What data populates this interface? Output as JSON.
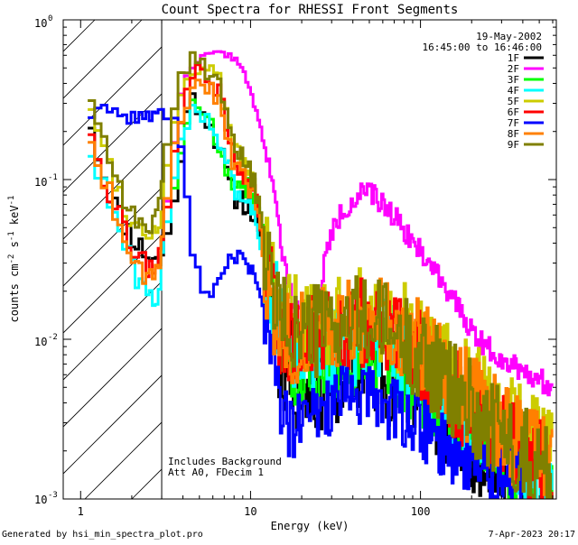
{
  "chart_data": {
    "type": "line",
    "title": "Count Spectra for RHESSI Front Segments",
    "xlabel": "Energy (keV)",
    "ylabel_main": "counts cm",
    "ylabel_exp1": "-2",
    "ylabel_mid": " s",
    "ylabel_exp2": "-1",
    "ylabel_tail": " keV",
    "ylabel_exp3": "-1",
    "xscale": "log",
    "yscale": "log",
    "xlim": [
      0.79,
      630
    ],
    "ylim": [
      0.001,
      1.0
    ],
    "xticks": [
      {
        "value": 1,
        "label": "1"
      },
      {
        "value": 10,
        "label": "10"
      },
      {
        "value": 100,
        "label": "100"
      }
    ],
    "yticks": [
      {
        "value": 1.0,
        "base": "10",
        "exp": "0"
      },
      {
        "value": 0.1,
        "base": "10",
        "exp": "-1"
      },
      {
        "value": 0.01,
        "base": "10",
        "exp": "-2"
      },
      {
        "value": 0.001,
        "base": "10",
        "exp": "-3"
      }
    ],
    "hatched_region_end": 3.0,
    "date": "19-May-2002",
    "time_range": "16:45:00 to 16:46:00",
    "note_line1": "Includes Background",
    "note_line2": "Att A0, FDecim 1",
    "footer_left": "Generated by hsi_min_spectra_plot.pro",
    "footer_right": "7-Apr-2023 20:17",
    "series": [
      {
        "name": "1F",
        "color": "#000000",
        "amp": 1.0,
        "noise": 0.55,
        "seed": 11,
        "points": [
          [
            1.1,
            0.3
          ],
          [
            1.25,
            0.15
          ],
          [
            1.45,
            0.09
          ],
          [
            1.7,
            0.06
          ],
          [
            2.0,
            0.045
          ],
          [
            2.4,
            0.035
          ],
          [
            2.9,
            0.03
          ],
          [
            3.2,
            0.04
          ],
          [
            3.6,
            0.08
          ],
          [
            4.1,
            0.22
          ],
          [
            4.6,
            0.32
          ],
          [
            5.1,
            0.3
          ],
          [
            5.8,
            0.22
          ],
          [
            6.5,
            0.17
          ],
          [
            7.3,
            0.1
          ],
          [
            8.0,
            0.08
          ],
          [
            9.0,
            0.075
          ],
          [
            10.5,
            0.06
          ],
          [
            12.0,
            0.03
          ],
          [
            13.5,
            0.015
          ],
          [
            15.0,
            0.008
          ],
          [
            20.0,
            0.005
          ],
          [
            30.0,
            0.006
          ],
          [
            45.0,
            0.007
          ],
          [
            60.0,
            0.0065
          ],
          [
            90.0,
            0.005
          ],
          [
            150.0,
            0.003
          ],
          [
            250.0,
            0.002
          ],
          [
            330.0,
            0.0015
          ],
          [
            500.0,
            0.0012
          ]
        ]
      },
      {
        "name": "2F",
        "color": "#ff00ff",
        "amp": 1.0,
        "noise": 0.12,
        "seed": 22,
        "points": [
          [
            3.1,
            0.05
          ],
          [
            3.5,
            0.15
          ],
          [
            4.0,
            0.4
          ],
          [
            4.7,
            0.55
          ],
          [
            5.5,
            0.6
          ],
          [
            6.5,
            0.62
          ],
          [
            7.5,
            0.6
          ],
          [
            8.5,
            0.55
          ],
          [
            9.5,
            0.42
          ],
          [
            11.0,
            0.25
          ],
          [
            12.5,
            0.14
          ],
          [
            13.5,
            0.1
          ],
          [
            15.0,
            0.04
          ],
          [
            17.0,
            0.02
          ],
          [
            19.0,
            0.015
          ],
          [
            21.0,
            0.012
          ],
          [
            23.0,
            0.012
          ],
          [
            25.0,
            0.018
          ],
          [
            28.0,
            0.035
          ],
          [
            32.0,
            0.055
          ],
          [
            38.0,
            0.07
          ],
          [
            45.0,
            0.082
          ],
          [
            52.0,
            0.08
          ],
          [
            60.0,
            0.07
          ],
          [
            70.0,
            0.06
          ],
          [
            85.0,
            0.045
          ],
          [
            100.0,
            0.035
          ],
          [
            130.0,
            0.025
          ],
          [
            170.0,
            0.015
          ],
          [
            220.0,
            0.01
          ],
          [
            280.0,
            0.008
          ],
          [
            350.0,
            0.007
          ],
          [
            450.0,
            0.006
          ],
          [
            600.0,
            0.005
          ]
        ]
      },
      {
        "name": "3F",
        "color": "#00ff00",
        "amp": 1.0,
        "noise": 0.5,
        "seed": 33,
        "points": [
          [
            3.3,
            0.06
          ],
          [
            3.8,
            0.14
          ],
          [
            4.3,
            0.25
          ],
          [
            4.8,
            0.3
          ],
          [
            5.3,
            0.27
          ],
          [
            6.0,
            0.2
          ],
          [
            7.0,
            0.12
          ],
          [
            8.0,
            0.09
          ],
          [
            9.0,
            0.08
          ],
          [
            10.0,
            0.09
          ],
          [
            11.0,
            0.07
          ],
          [
            12.5,
            0.03
          ],
          [
            14.0,
            0.016
          ],
          [
            16.0,
            0.009
          ],
          [
            20.0,
            0.007
          ],
          [
            30.0,
            0.008
          ],
          [
            45.0,
            0.009
          ],
          [
            60.0,
            0.008
          ],
          [
            90.0,
            0.006
          ],
          [
            150.0,
            0.004
          ],
          [
            250.0,
            0.0025
          ],
          [
            400.0,
            0.0015
          ],
          [
            600.0,
            0.0012
          ]
        ]
      },
      {
        "name": "4F",
        "color": "#00ffff",
        "amp": 1.0,
        "noise": 0.5,
        "seed": 44,
        "points": [
          [
            1.1,
            0.18
          ],
          [
            1.3,
            0.1
          ],
          [
            1.5,
            0.07
          ],
          [
            1.8,
            0.04
          ],
          [
            2.1,
            0.025
          ],
          [
            2.5,
            0.018
          ],
          [
            2.9,
            0.02
          ],
          [
            3.2,
            0.05
          ],
          [
            3.7,
            0.12
          ],
          [
            4.2,
            0.22
          ],
          [
            4.8,
            0.28
          ],
          [
            5.4,
            0.25
          ],
          [
            6.2,
            0.2
          ],
          [
            7.0,
            0.16
          ],
          [
            8.0,
            0.09
          ],
          [
            9.0,
            0.08
          ],
          [
            10.5,
            0.07
          ],
          [
            12.0,
            0.03
          ],
          [
            14.0,
            0.016
          ],
          [
            16.0,
            0.009
          ],
          [
            20.0,
            0.008
          ],
          [
            30.0,
            0.009
          ],
          [
            45.0,
            0.01
          ],
          [
            60.0,
            0.009
          ],
          [
            90.0,
            0.007
          ],
          [
            150.0,
            0.004
          ],
          [
            250.0,
            0.0025
          ],
          [
            400.0,
            0.0016
          ],
          [
            600.0,
            0.0012
          ]
        ]
      },
      {
        "name": "5F",
        "color": "#cccc00",
        "amp": 1.0,
        "noise": 0.5,
        "seed": 55,
        "points": [
          [
            1.1,
            0.35
          ],
          [
            1.3,
            0.2
          ],
          [
            1.5,
            0.12
          ],
          [
            1.8,
            0.07
          ],
          [
            2.1,
            0.05
          ],
          [
            2.5,
            0.045
          ],
          [
            2.9,
            0.055
          ],
          [
            3.2,
            0.1
          ],
          [
            3.6,
            0.25
          ],
          [
            4.1,
            0.4
          ],
          [
            4.6,
            0.5
          ],
          [
            5.1,
            0.52
          ],
          [
            5.8,
            0.45
          ],
          [
            6.5,
            0.4
          ],
          [
            7.3,
            0.25
          ],
          [
            8.0,
            0.16
          ],
          [
            9.0,
            0.13
          ],
          [
            10.5,
            0.1
          ],
          [
            12.0,
            0.04
          ],
          [
            13.5,
            0.02
          ],
          [
            15.0,
            0.014
          ],
          [
            20.0,
            0.012
          ],
          [
            30.0,
            0.014
          ],
          [
            45.0,
            0.015
          ],
          [
            60.0,
            0.014
          ],
          [
            90.0,
            0.011
          ],
          [
            150.0,
            0.006
          ],
          [
            250.0,
            0.004
          ],
          [
            400.0,
            0.0025
          ],
          [
            600.0,
            0.0018
          ]
        ]
      },
      {
        "name": "6F",
        "color": "#ff0000",
        "amp": 1.0,
        "noise": 0.5,
        "seed": 66,
        "points": [
          [
            1.1,
            0.25
          ],
          [
            1.3,
            0.13
          ],
          [
            1.5,
            0.08
          ],
          [
            1.8,
            0.05
          ],
          [
            2.1,
            0.035
          ],
          [
            2.5,
            0.028
          ],
          [
            2.9,
            0.032
          ],
          [
            3.2,
            0.07
          ],
          [
            3.6,
            0.18
          ],
          [
            4.1,
            0.32
          ],
          [
            4.6,
            0.42
          ],
          [
            5.1,
            0.46
          ],
          [
            5.8,
            0.4
          ],
          [
            6.5,
            0.35
          ],
          [
            7.3,
            0.22
          ],
          [
            8.0,
            0.13
          ],
          [
            9.0,
            0.11
          ],
          [
            10.5,
            0.09
          ],
          [
            12.0,
            0.035
          ],
          [
            13.5,
            0.017
          ],
          [
            15.0,
            0.011
          ],
          [
            20.0,
            0.009
          ],
          [
            30.0,
            0.011
          ],
          [
            45.0,
            0.012
          ],
          [
            60.0,
            0.011
          ],
          [
            90.0,
            0.009
          ],
          [
            150.0,
            0.005
          ],
          [
            250.0,
            0.003
          ],
          [
            400.0,
            0.002
          ],
          [
            600.0,
            0.0015
          ]
        ]
      },
      {
        "name": "7F",
        "color": "#0000ff",
        "amp": 1.0,
        "noise": 0.35,
        "seed": 77,
        "points": [
          [
            1.1,
            0.24
          ],
          [
            1.3,
            0.31
          ],
          [
            1.5,
            0.26
          ],
          [
            1.7,
            0.27
          ],
          [
            1.9,
            0.24
          ],
          [
            2.1,
            0.26
          ],
          [
            2.4,
            0.24
          ],
          [
            2.7,
            0.26
          ],
          [
            3.0,
            0.28
          ],
          [
            3.3,
            0.24
          ],
          [
            3.7,
            0.21
          ],
          [
            4.0,
            0.13
          ],
          [
            4.3,
            0.06
          ],
          [
            4.7,
            0.03
          ],
          [
            5.2,
            0.022
          ],
          [
            5.8,
            0.02
          ],
          [
            6.5,
            0.022
          ],
          [
            7.5,
            0.03
          ],
          [
            8.5,
            0.035
          ],
          [
            9.5,
            0.03
          ],
          [
            10.5,
            0.025
          ],
          [
            12.0,
            0.015
          ],
          [
            13.5,
            0.008
          ],
          [
            15.0,
            0.004
          ],
          [
            17.0,
            0.0025
          ],
          [
            20.0,
            0.003
          ],
          [
            30.0,
            0.004
          ],
          [
            45.0,
            0.0045
          ],
          [
            60.0,
            0.004
          ],
          [
            90.0,
            0.003
          ],
          [
            150.0,
            0.002
          ],
          [
            250.0,
            0.0015
          ],
          [
            400.0,
            0.0012
          ]
        ]
      },
      {
        "name": "8F",
        "color": "#ff8000",
        "amp": 1.0,
        "noise": 0.5,
        "seed": 88,
        "points": [
          [
            1.1,
            0.22
          ],
          [
            1.3,
            0.12
          ],
          [
            1.5,
            0.08
          ],
          [
            1.8,
            0.045
          ],
          [
            2.1,
            0.03
          ],
          [
            2.5,
            0.025
          ],
          [
            2.9,
            0.03
          ],
          [
            3.2,
            0.065
          ],
          [
            3.6,
            0.17
          ],
          [
            4.1,
            0.3
          ],
          [
            4.6,
            0.4
          ],
          [
            5.1,
            0.42
          ],
          [
            5.8,
            0.38
          ],
          [
            6.5,
            0.32
          ],
          [
            7.3,
            0.2
          ],
          [
            8.0,
            0.12
          ],
          [
            9.0,
            0.1
          ],
          [
            10.5,
            0.085
          ],
          [
            12.0,
            0.033
          ],
          [
            13.5,
            0.016
          ],
          [
            15.0,
            0.011
          ],
          [
            20.0,
            0.01
          ],
          [
            30.0,
            0.012
          ],
          [
            45.0,
            0.013
          ],
          [
            60.0,
            0.012
          ],
          [
            90.0,
            0.01
          ],
          [
            150.0,
            0.0055
          ],
          [
            250.0,
            0.0035
          ],
          [
            400.0,
            0.002
          ],
          [
            600.0,
            0.0016
          ]
        ]
      },
      {
        "name": "9F",
        "color": "#808000",
        "amp": 1.0,
        "noise": 0.5,
        "seed": 99,
        "points": [
          [
            1.1,
            0.4
          ],
          [
            1.3,
            0.22
          ],
          [
            1.5,
            0.13
          ],
          [
            1.8,
            0.08
          ],
          [
            2.1,
            0.055
          ],
          [
            2.5,
            0.05
          ],
          [
            2.9,
            0.065
          ],
          [
            3.2,
            0.13
          ],
          [
            3.6,
            0.3
          ],
          [
            4.1,
            0.48
          ],
          [
            4.6,
            0.58
          ],
          [
            5.1,
            0.56
          ],
          [
            5.8,
            0.48
          ],
          [
            6.5,
            0.42
          ],
          [
            7.3,
            0.26
          ],
          [
            8.0,
            0.16
          ],
          [
            9.0,
            0.13
          ],
          [
            10.5,
            0.1
          ],
          [
            12.0,
            0.04
          ],
          [
            13.5,
            0.02
          ],
          [
            15.0,
            0.013
          ],
          [
            20.0,
            0.011
          ],
          [
            30.0,
            0.012
          ],
          [
            45.0,
            0.013
          ],
          [
            60.0,
            0.012
          ],
          [
            90.0,
            0.009
          ],
          [
            150.0,
            0.005
          ],
          [
            250.0,
            0.003
          ],
          [
            400.0,
            0.002
          ],
          [
            600.0,
            0.0015
          ]
        ]
      }
    ]
  }
}
